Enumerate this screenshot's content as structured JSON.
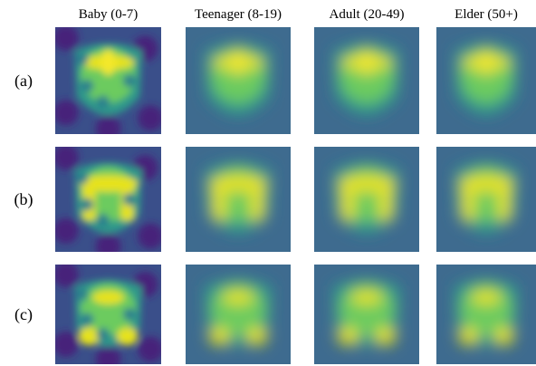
{
  "figure": {
    "columns": [
      "Baby (0-7)",
      "Teenager (8-19)",
      "Adult (20-49)",
      "Elder (50+)"
    ],
    "rows": [
      "(a)",
      "(b)",
      "(c)"
    ]
  }
}
